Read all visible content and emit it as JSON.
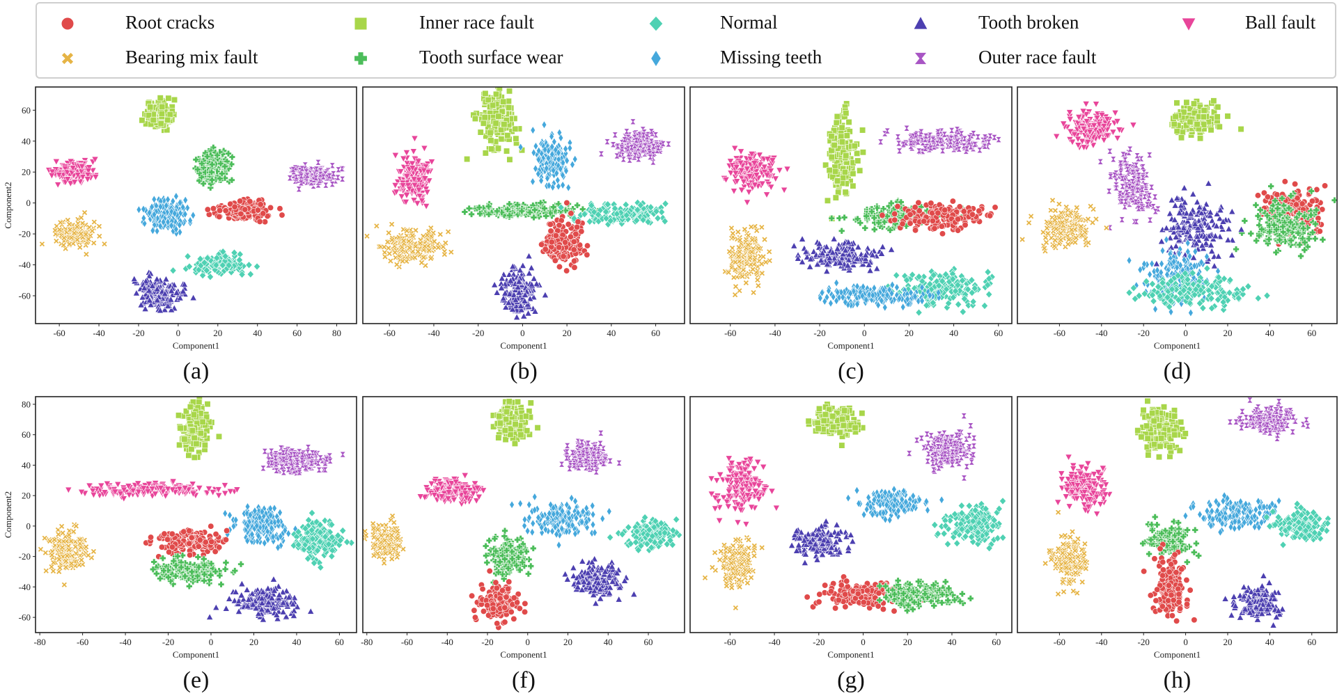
{
  "legend": {
    "items": [
      {
        "key": "root",
        "label": "Root cracks",
        "color": "#e04a4a",
        "marker": "circle"
      },
      {
        "key": "inner",
        "label": "Inner race fault",
        "color": "#a8d64a",
        "marker": "square"
      },
      {
        "key": "normal",
        "label": "Normal",
        "color": "#4fd1b3",
        "marker": "diamond"
      },
      {
        "key": "tooth_broken",
        "label": "Tooth broken",
        "color": "#4c3fb0",
        "marker": "triangle-up"
      },
      {
        "key": "ball",
        "label": "Ball fault",
        "color": "#e8459a",
        "marker": "triangle-down"
      },
      {
        "key": "bearing_mix",
        "label": "Bearing mix fault",
        "color": "#e6b445",
        "marker": "x"
      },
      {
        "key": "wear",
        "label": "Tooth surface wear",
        "color": "#4cbd5a",
        "marker": "plus"
      },
      {
        "key": "missing",
        "label": "Missing teeth",
        "color": "#45a8dc",
        "marker": "thin-diamond"
      },
      {
        "key": "outer",
        "label": "Outer race fault",
        "color": "#a855c4",
        "marker": "hourglass"
      }
    ]
  },
  "chart_data": [
    {
      "panel": "(a)",
      "type": "scatter",
      "xlabel": "Component1",
      "ylabel": "Component2",
      "xlim": [
        -72,
        90
      ],
      "ylim": [
        -78,
        75
      ],
      "xticks": [
        -60,
        -40,
        -20,
        0,
        20,
        40,
        60,
        80
      ],
      "yticks": [
        -60,
        -40,
        -20,
        0,
        20,
        40,
        60
      ],
      "clusters": [
        {
          "series": "inner",
          "cx": -10,
          "cy": 57,
          "sx": 3,
          "sy": 4
        },
        {
          "series": "ball",
          "cx": -52,
          "cy": 20,
          "sx": 5,
          "sy": 3.5
        },
        {
          "series": "wear",
          "cx": 17,
          "cy": 23,
          "sx": 4,
          "sy": 5
        },
        {
          "series": "outer",
          "cx": 68,
          "cy": 18,
          "sx": 6,
          "sy": 3
        },
        {
          "series": "missing",
          "cx": -6,
          "cy": -8,
          "sx": 5,
          "sy": 5
        },
        {
          "series": "root",
          "cx": 33,
          "cy": -5,
          "sx": 7,
          "sy": 3
        },
        {
          "series": "bearing_mix",
          "cx": -52,
          "cy": -20,
          "sx": 5,
          "sy": 4
        },
        {
          "series": "normal",
          "cx": 20,
          "cy": -40,
          "sx": 6,
          "sy": 3
        },
        {
          "series": "tooth_broken",
          "cx": -10,
          "cy": -58,
          "sx": 6,
          "sy": 5
        }
      ]
    },
    {
      "panel": "(b)",
      "type": "scatter",
      "xlabel": "Component1",
      "ylabel": "",
      "xlim": [
        -72,
        73
      ],
      "ylim": [
        -75,
        70
      ],
      "xticks": [
        -60,
        -40,
        -20,
        0,
        20,
        40,
        60
      ],
      "yticks": [],
      "clusters": [
        {
          "series": "inner",
          "cx": -12,
          "cy": 50,
          "sx": 4,
          "sy": 9
        },
        {
          "series": "outer",
          "cx": 52,
          "cy": 34,
          "sx": 5,
          "sy": 4
        },
        {
          "series": "ball",
          "cx": -49,
          "cy": 14,
          "sx": 4,
          "sy": 7
        },
        {
          "series": "missing",
          "cx": 13,
          "cy": 25,
          "sx": 4,
          "sy": 7
        },
        {
          "series": "wear",
          "cx": 0,
          "cy": -6,
          "sx": 12,
          "sy": 2
        },
        {
          "series": "normal",
          "cx": 46,
          "cy": -8,
          "sx": 10,
          "sy": 3
        },
        {
          "series": "bearing_mix",
          "cx": -50,
          "cy": -28,
          "sx": 7,
          "sy": 5
        },
        {
          "series": "root",
          "cx": 18,
          "cy": -25,
          "sx": 5,
          "sy": 7
        },
        {
          "series": "tooth_broken",
          "cx": -2,
          "cy": -56,
          "sx": 4,
          "sy": 7
        }
      ]
    },
    {
      "panel": "(c)",
      "type": "scatter",
      "xlabel": "Component1",
      "ylabel": "",
      "xlim": [
        -78,
        66
      ],
      "ylim": [
        -72,
        75
      ],
      "xticks": [
        -60,
        -40,
        -20,
        0,
        20,
        40,
        60
      ],
      "yticks": [],
      "clusters": [
        {
          "series": "inner",
          "cx": -10,
          "cy": 35,
          "sx": 3,
          "sy": 12
        },
        {
          "series": "outer",
          "cx": 35,
          "cy": 41,
          "sx": 10,
          "sy": 3
        },
        {
          "series": "ball",
          "cx": -50,
          "cy": 23,
          "sx": 5,
          "sy": 6
        },
        {
          "series": "wear",
          "cx": 15,
          "cy": -5,
          "sx": 10,
          "sy": 4
        },
        {
          "series": "root",
          "cx": 35,
          "cy": -5,
          "sx": 10,
          "sy": 4
        },
        {
          "series": "tooth_broken",
          "cx": -10,
          "cy": -30,
          "sx": 8,
          "sy": 4
        },
        {
          "series": "normal",
          "cx": 35,
          "cy": -50,
          "sx": 10,
          "sy": 5
        },
        {
          "series": "missing",
          "cx": 5,
          "cy": -55,
          "sx": 12,
          "sy": 3
        },
        {
          "series": "bearing_mix",
          "cx": -53,
          "cy": -30,
          "sx": 4,
          "sy": 8
        }
      ]
    },
    {
      "panel": "(d)",
      "type": "scatter",
      "xlabel": "Component1",
      "ylabel": "",
      "xlim": [
        -80,
        72
      ],
      "ylim": [
        -74,
        70
      ],
      "xticks": [
        -60,
        -40,
        -20,
        0,
        20,
        40,
        60
      ],
      "yticks": [],
      "clusters": [
        {
          "series": "ball",
          "cx": -45,
          "cy": 45,
          "sx": 6,
          "sy": 5
        },
        {
          "series": "inner",
          "cx": 5,
          "cy": 50,
          "sx": 6,
          "sy": 5
        },
        {
          "series": "outer",
          "cx": -25,
          "cy": 10,
          "sx": 5,
          "sy": 9
        },
        {
          "series": "bearing_mix",
          "cx": -57,
          "cy": -15,
          "sx": 6,
          "sy": 6
        },
        {
          "series": "root",
          "cx": 50,
          "cy": -5,
          "sx": 8,
          "sy": 8
        },
        {
          "series": "wear",
          "cx": 48,
          "cy": -15,
          "sx": 8,
          "sy": 8
        },
        {
          "series": "tooth_broken",
          "cx": 5,
          "cy": -15,
          "sx": 7,
          "sy": 9
        },
        {
          "series": "missing",
          "cx": -5,
          "cy": -45,
          "sx": 8,
          "sy": 8
        },
        {
          "series": "normal",
          "cx": 5,
          "cy": -55,
          "sx": 12,
          "sy": 5
        }
      ]
    },
    {
      "panel": "(e)",
      "type": "scatter",
      "xlabel": "Component1",
      "ylabel": "Component2",
      "xlim": [
        -82,
        68
      ],
      "ylim": [
        -70,
        85
      ],
      "xticks": [
        -80,
        -60,
        -40,
        -20,
        0,
        20,
        40,
        60
      ],
      "yticks": [
        -60,
        -40,
        -20,
        0,
        20,
        40,
        60,
        80
      ],
      "clusters": [
        {
          "series": "inner",
          "cx": -8,
          "cy": 63,
          "sx": 3,
          "sy": 8
        },
        {
          "series": "outer",
          "cx": 40,
          "cy": 43,
          "sx": 7,
          "sy": 4
        },
        {
          "series": "ball",
          "cx": -30,
          "cy": 24,
          "sx": 15,
          "sy": 2
        },
        {
          "series": "missing",
          "cx": 23,
          "cy": 0,
          "sx": 6,
          "sy": 6
        },
        {
          "series": "normal",
          "cx": 50,
          "cy": -10,
          "sx": 5,
          "sy": 6
        },
        {
          "series": "root",
          "cx": -10,
          "cy": -10,
          "sx": 8,
          "sy": 4
        },
        {
          "series": "wear",
          "cx": -10,
          "cy": -30,
          "sx": 8,
          "sy": 4
        },
        {
          "series": "bearing_mix",
          "cx": -67,
          "cy": -17,
          "sx": 4,
          "sy": 7
        },
        {
          "series": "tooth_broken",
          "cx": 25,
          "cy": -50,
          "sx": 8,
          "sy": 5
        }
      ]
    },
    {
      "panel": "(f)",
      "type": "scatter",
      "xlabel": "Component1",
      "ylabel": "",
      "xlim": [
        -82,
        78
      ],
      "ylim": [
        -70,
        85
      ],
      "xticks": [
        -80,
        -60,
        -40,
        -20,
        0,
        20,
        40,
        60
      ],
      "yticks": [],
      "clusters": [
        {
          "series": "inner",
          "cx": -8,
          "cy": 70,
          "sx": 4,
          "sy": 6
        },
        {
          "series": "outer",
          "cx": 30,
          "cy": 45,
          "sx": 5,
          "sy": 4
        },
        {
          "series": "ball",
          "cx": -38,
          "cy": 23,
          "sx": 6,
          "sy": 4
        },
        {
          "series": "missing",
          "cx": 17,
          "cy": 5,
          "sx": 8,
          "sy": 5
        },
        {
          "series": "normal",
          "cx": 60,
          "cy": -5,
          "sx": 6,
          "sy": 4
        },
        {
          "series": "bearing_mix",
          "cx": -70,
          "cy": -10,
          "sx": 4,
          "sy": 5
        },
        {
          "series": "wear",
          "cx": -10,
          "cy": -20,
          "sx": 5,
          "sy": 6
        },
        {
          "series": "tooth_broken",
          "cx": 35,
          "cy": -35,
          "sx": 6,
          "sy": 5
        },
        {
          "series": "root",
          "cx": -15,
          "cy": -50,
          "sx": 5,
          "sy": 6
        }
      ]
    },
    {
      "panel": "(g)",
      "type": "scatter",
      "xlabel": "Component1",
      "ylabel": "",
      "xlim": [
        -78,
        67
      ],
      "ylim": [
        -70,
        85
      ],
      "xticks": [
        -60,
        -40,
        -20,
        0,
        20,
        40,
        60
      ],
      "yticks": [],
      "clusters": [
        {
          "series": "inner",
          "cx": -12,
          "cy": 68,
          "sx": 5,
          "sy": 5
        },
        {
          "series": "outer",
          "cx": 38,
          "cy": 50,
          "sx": 5,
          "sy": 6
        },
        {
          "series": "ball",
          "cx": -55,
          "cy": 25,
          "sx": 5,
          "sy": 8
        },
        {
          "series": "missing",
          "cx": 13,
          "cy": 15,
          "sx": 7,
          "sy": 4
        },
        {
          "series": "normal",
          "cx": 50,
          "cy": 0,
          "sx": 6,
          "sy": 6
        },
        {
          "series": "tooth_broken",
          "cx": -20,
          "cy": -10,
          "sx": 5,
          "sy": 5
        },
        {
          "series": "bearing_mix",
          "cx": -57,
          "cy": -25,
          "sx": 4,
          "sy": 8
        },
        {
          "series": "root",
          "cx": 0,
          "cy": -45,
          "sx": 10,
          "sy": 4
        },
        {
          "series": "wear",
          "cx": 25,
          "cy": -45,
          "sx": 8,
          "sy": 4
        }
      ]
    },
    {
      "panel": "(h)",
      "type": "scatter",
      "xlabel": "Component1",
      "ylabel": "",
      "xlim": [
        -80,
        72
      ],
      "ylim": [
        -70,
        85
      ],
      "xticks": [
        -60,
        -40,
        -20,
        0,
        20,
        40,
        60
      ],
      "yticks": [],
      "clusters": [
        {
          "series": "inner",
          "cx": -12,
          "cy": 63,
          "sx": 4,
          "sy": 7
        },
        {
          "series": "outer",
          "cx": 40,
          "cy": 70,
          "sx": 6,
          "sy": 4
        },
        {
          "series": "ball",
          "cx": -48,
          "cy": 25,
          "sx": 5,
          "sy": 7
        },
        {
          "series": "missing",
          "cx": 25,
          "cy": 8,
          "sx": 9,
          "sy": 5
        },
        {
          "series": "normal",
          "cx": 55,
          "cy": 0,
          "sx": 6,
          "sy": 5
        },
        {
          "series": "bearing_mix",
          "cx": -55,
          "cy": -22,
          "sx": 4,
          "sy": 8
        },
        {
          "series": "wear",
          "cx": -8,
          "cy": -10,
          "sx": 5,
          "sy": 5
        },
        {
          "series": "root",
          "cx": -8,
          "cy": -40,
          "sx": 4,
          "sy": 10
        },
        {
          "series": "tooth_broken",
          "cx": 35,
          "cy": -50,
          "sx": 5,
          "sy": 5
        }
      ]
    }
  ]
}
